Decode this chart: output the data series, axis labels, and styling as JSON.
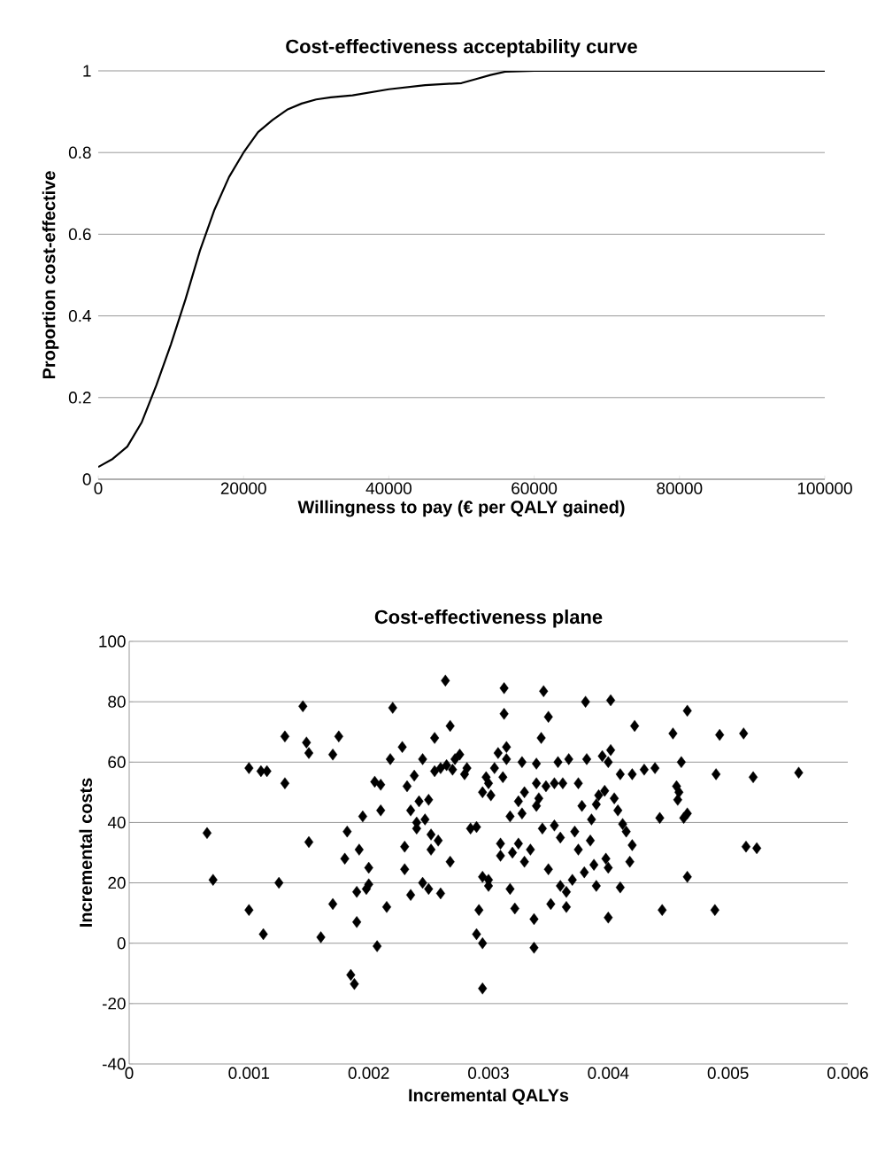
{
  "chart_data": [
    {
      "type": "line",
      "title": "Cost-effectiveness acceptability curve",
      "xlabel": "Willingness to pay (€ per QALY gained)",
      "ylabel": "Proportion cost-effective",
      "color": "#000000",
      "line_style": "solid",
      "marker": "none",
      "grid": "y",
      "x": [
        0,
        2000,
        4000,
        6000,
        8000,
        10000,
        12000,
        14000,
        16000,
        18000,
        20000,
        22000,
        24000,
        26000,
        28000,
        30000,
        32000,
        35000,
        40000,
        45000,
        50000,
        52000,
        54000,
        56000,
        60000,
        80000,
        100000
      ],
      "values": [
        0.03,
        0.05,
        0.08,
        0.14,
        0.23,
        0.33,
        0.44,
        0.56,
        0.66,
        0.74,
        0.8,
        0.85,
        0.88,
        0.905,
        0.92,
        0.93,
        0.935,
        0.94,
        0.955,
        0.965,
        0.97,
        0.98,
        0.99,
        0.998,
        1,
        1,
        1
      ],
      "xlim": [
        0,
        100000
      ],
      "ylim": [
        0,
        1
      ],
      "xticks": [
        0,
        20000,
        40000,
        60000,
        80000,
        100000
      ],
      "yticks": [
        0,
        0.2,
        0.4,
        0.6,
        0.8,
        1
      ]
    },
    {
      "type": "scatter",
      "title": "Cost-effectiveness plane",
      "xlabel": "Incremental QALYs",
      "ylabel": "Incremental costs",
      "color": "#000000",
      "marker": "diamond",
      "grid": "y",
      "x": [
        0.00065,
        0.0007,
        0.001,
        0.001,
        0.0011,
        0.00115,
        0.00112,
        0.00125,
        0.0013,
        0.0013,
        0.00145,
        0.00148,
        0.0015,
        0.0015,
        0.0016,
        0.0017,
        0.0017,
        0.00175,
        0.0018,
        0.00182,
        0.00185,
        0.00188,
        0.0019,
        0.0019,
        0.00192,
        0.00195,
        0.00198,
        0.002,
        0.002,
        0.00205,
        0.00207,
        0.0021,
        0.0021,
        0.00215,
        0.00218,
        0.0022,
        0.00228,
        0.0023,
        0.0023,
        0.00232,
        0.00235,
        0.00235,
        0.00238,
        0.0024,
        0.0024,
        0.00242,
        0.00245,
        0.00245,
        0.00247,
        0.0025,
        0.0025,
        0.00252,
        0.00252,
        0.00255,
        0.00255,
        0.00258,
        0.0026,
        0.0026,
        0.00265,
        0.00268,
        0.0027,
        0.00272,
        0.00264,
        0.00276,
        0.00268,
        0.0028,
        0.00282,
        0.00285,
        0.0029,
        0.0029,
        0.00292,
        0.00295,
        0.00295,
        0.00298,
        0.003,
        0.003,
        0.003,
        0.00302,
        0.00305,
        0.00295,
        0.00295,
        0.00308,
        0.0031,
        0.0031,
        0.00312,
        0.00315,
        0.00315,
        0.00318,
        0.00318,
        0.0032,
        0.00322,
        0.00325,
        0.00325,
        0.00328,
        0.00328,
        0.0033,
        0.0033,
        0.00313,
        0.00313,
        0.00335,
        0.00338,
        0.0034,
        0.0034,
        0.0034,
        0.00342,
        0.00345,
        0.00348,
        0.0035,
        0.0035,
        0.00352,
        0.00355,
        0.00355,
        0.00358,
        0.0036,
        0.0036,
        0.00362,
        0.00365,
        0.00365,
        0.00367,
        0.00344,
        0.0037,
        0.00346,
        0.00372,
        0.00375,
        0.00375,
        0.00378,
        0.0038,
        0.00338,
        0.00382,
        0.00385,
        0.00388,
        0.0039,
        0.0039,
        0.00395,
        0.00398,
        0.004,
        0.004,
        0.004,
        0.00381,
        0.00402,
        0.00405,
        0.00408,
        0.0041,
        0.0041,
        0.00412,
        0.00415,
        0.00418,
        0.0042,
        0.0042,
        0.00422,
        0.0043,
        0.00439,
        0.00443,
        0.00445,
        0.00454,
        0.00457,
        0.00459,
        0.00458,
        0.00461,
        0.00463,
        0.00466,
        0.00466,
        0.00466,
        0.0049,
        0.00493,
        0.00489,
        0.00513,
        0.00515,
        0.00521,
        0.00524,
        0.00559,
        0.00402,
        0.00397,
        0.00392,
        0.00386
      ],
      "values": [
        36.5,
        21,
        11,
        58,
        57,
        57,
        3,
        20,
        68.5,
        53,
        78.5,
        66.5,
        63,
        33.5,
        2,
        13,
        62.5,
        68.5,
        28,
        37,
        -10.5,
        -13.5,
        7,
        17,
        31,
        42,
        18,
        25,
        19.5,
        53.5,
        -1,
        52.5,
        44,
        12,
        61,
        78,
        65,
        32,
        24.5,
        52,
        16,
        44,
        55.5,
        40,
        38,
        47,
        20,
        61,
        41,
        18,
        47.5,
        36,
        31,
        68,
        57,
        34,
        16.5,
        58,
        59,
        27,
        57.5,
        61,
        87,
        62.5,
        72,
        56,
        58,
        38,
        3,
        38.5,
        11,
        22,
        50,
        55,
        21,
        19,
        53,
        49,
        58,
        0,
        -15,
        63,
        33,
        29,
        55,
        61,
        65,
        42,
        18,
        30,
        11.5,
        33,
        47,
        43,
        60,
        50,
        27,
        84.5,
        76,
        31,
        8,
        45.5,
        53,
        59.5,
        48,
        38,
        52,
        24.5,
        75,
        13,
        39,
        53,
        60,
        19,
        35,
        53,
        17,
        12,
        61,
        68,
        21,
        83.5,
        37,
        31,
        53,
        45.5,
        23.5,
        -1.5,
        61,
        34,
        26,
        46,
        19,
        62,
        28,
        60,
        8.5,
        25,
        80,
        64,
        48,
        44,
        18.5,
        56,
        39.5,
        37,
        27,
        56,
        32.5,
        72,
        57.5,
        58,
        41.5,
        11,
        69.5,
        52,
        50,
        47.5,
        60,
        41.5,
        43,
        77,
        22,
        56,
        69,
        11,
        69.5,
        32,
        55,
        31.5,
        56.5,
        80.5,
        50.5,
        49,
        41
      ],
      "xlim": [
        0,
        0.006
      ],
      "ylim": [
        -40,
        100
      ],
      "xticks": [
        0,
        0.001,
        0.002,
        0.003,
        0.004,
        0.005,
        0.006
      ],
      "yticks": [
        -40,
        -20,
        0,
        20,
        40,
        60,
        80,
        100
      ]
    }
  ]
}
